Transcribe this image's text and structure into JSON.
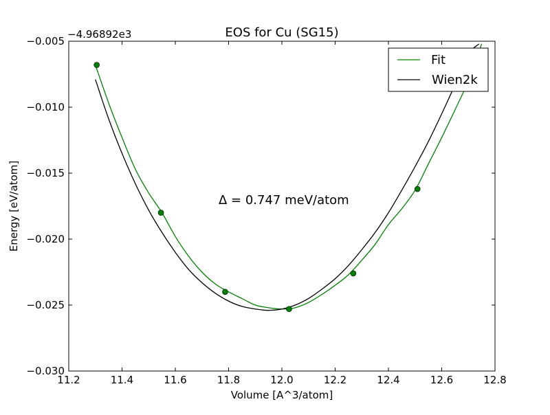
{
  "chart_data": {
    "type": "line",
    "title": "EOS for Cu (SG15)",
    "xlabel": "Volume [A^3/atom]",
    "ylabel": "Energy [eV/atom]",
    "offset_text": "−4.96892e3",
    "annotation": "Δ = 0.747 meV/atom",
    "xlim": [
      11.2,
      12.8
    ],
    "ylim": [
      -0.03,
      -0.005
    ],
    "xticks": [
      11.2,
      11.4,
      11.6,
      11.8,
      12.0,
      12.2,
      12.4,
      12.6,
      12.8
    ],
    "xtick_labels": [
      "11.2",
      "11.4",
      "11.6",
      "11.8",
      "12.0",
      "12.2",
      "12.4",
      "12.6",
      "12.8"
    ],
    "yticks": [
      -0.03,
      -0.025,
      -0.02,
      -0.015,
      -0.01,
      -0.005
    ],
    "ytick_labels": [
      "−0.030",
      "−0.025",
      "−0.020",
      "−0.015",
      "−0.010",
      "−0.005"
    ],
    "grid": false,
    "legend_position": "top-right",
    "series": [
      {
        "name": "Fit",
        "color": "#008000",
        "kind": "line",
        "x": [
          11.3,
          11.35,
          11.4,
          11.45,
          11.5,
          11.55,
          11.6,
          11.65,
          11.7,
          11.75,
          11.8,
          11.85,
          11.9,
          11.95,
          12.0,
          12.05,
          12.1,
          12.15,
          12.2,
          12.25,
          12.3,
          12.35,
          12.4,
          12.45,
          12.5,
          12.55,
          12.6,
          12.65,
          12.7,
          12.75
        ],
        "y": [
          -0.0068,
          -0.0097,
          -0.0123,
          -0.0147,
          -0.0165,
          -0.018,
          -0.0198,
          -0.0213,
          -0.0225,
          -0.0234,
          -0.024,
          -0.0245,
          -0.025,
          -0.0252,
          -0.0253,
          -0.0252,
          -0.0248,
          -0.0242,
          -0.0235,
          -0.0227,
          -0.0216,
          -0.0204,
          -0.0189,
          -0.0177,
          -0.0163,
          -0.0143,
          -0.0123,
          -0.0102,
          -0.008,
          -0.0052
        ]
      },
      {
        "name": "Wien2k",
        "color": "#000000",
        "kind": "line",
        "x": [
          11.3,
          11.35,
          11.4,
          11.45,
          11.5,
          11.55,
          11.6,
          11.65,
          11.7,
          11.75,
          11.8,
          11.85,
          11.9,
          11.95,
          12.0,
          12.05,
          12.1,
          12.15,
          12.2,
          12.25,
          12.3,
          12.35,
          12.4,
          12.45,
          12.5,
          12.55,
          12.6,
          12.65,
          12.7,
          12.74
        ],
        "y": [
          -0.0079,
          -0.0109,
          -0.0135,
          -0.0158,
          -0.0178,
          -0.0195,
          -0.021,
          -0.0223,
          -0.0233,
          -0.0241,
          -0.0247,
          -0.0251,
          -0.0253,
          -0.0254,
          -0.0253,
          -0.025,
          -0.0245,
          -0.0238,
          -0.023,
          -0.022,
          -0.0208,
          -0.0195,
          -0.018,
          -0.0163,
          -0.0145,
          -0.0126,
          -0.0105,
          -0.0083,
          -0.006,
          -0.0052
        ]
      },
      {
        "name": "",
        "color": "#008000",
        "kind": "scatter",
        "x": [
          11.305,
          11.546,
          11.787,
          12.027,
          12.268,
          12.509
        ],
        "y": [
          -0.0068,
          -0.018,
          -0.024,
          -0.0253,
          -0.0226,
          -0.0162
        ]
      }
    ]
  }
}
